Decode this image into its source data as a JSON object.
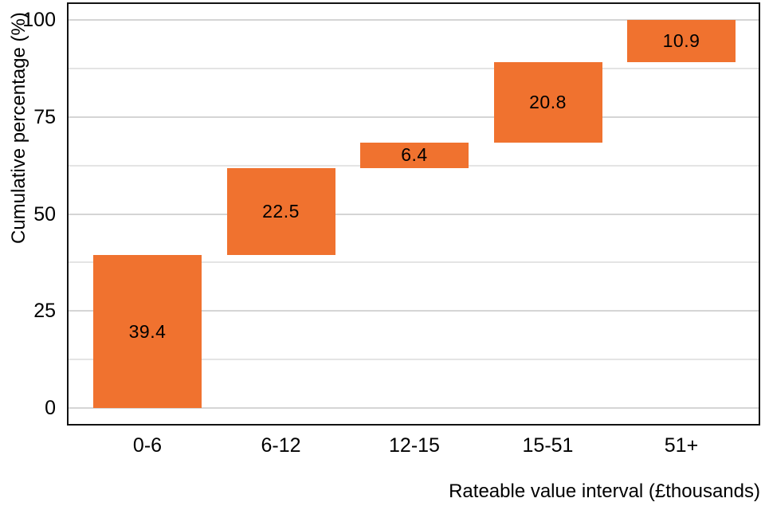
{
  "chart_data": {
    "type": "bar",
    "subtype": "waterfall",
    "title": "",
    "xlabel": "Rateable value interval (£thousands)",
    "ylabel": "Cumulative percentage (%)",
    "categories": [
      "0-6",
      "6-12",
      "12-15",
      "15-51",
      "51+"
    ],
    "values": [
      39.4,
      22.5,
      6.4,
      20.8,
      10.9
    ],
    "cumulative_start": [
      0,
      39.4,
      61.9,
      68.3,
      89.1
    ],
    "cumulative_end": [
      39.4,
      61.9,
      68.3,
      89.1,
      100
    ],
    "value_labels": [
      "39.4",
      "22.5",
      "6.4",
      "20.8",
      "10.9"
    ],
    "y_ticks": [
      0,
      25,
      50,
      75,
      100
    ],
    "y_tick_labels": [
      "0",
      "25",
      "50",
      "75",
      "100"
    ],
    "y_minor_ticks": [
      12.5,
      37.5,
      62.5,
      87.5
    ],
    "ylim": [
      0,
      100
    ],
    "bar_color": "#F0722F",
    "label_color": "#000000",
    "grid": "horizontal",
    "legend": "none"
  }
}
